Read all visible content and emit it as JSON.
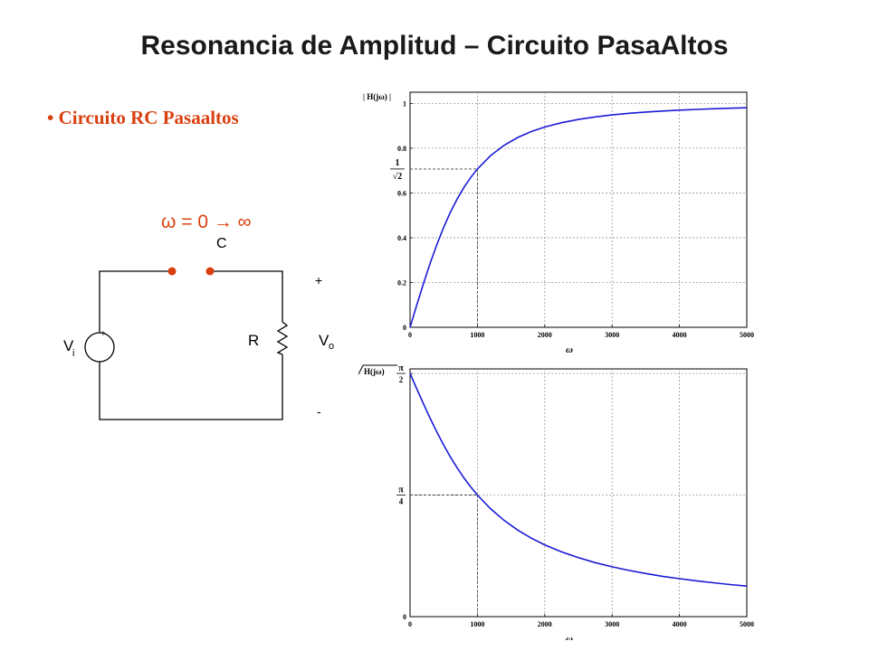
{
  "title": "Resonancia de Amplitud – Circuito PasaAltos",
  "bullet": "• Circuito RC Pasaaltos",
  "circuit": {
    "omega_annotation": "ω = 0 → ∞",
    "capacitor_label": "C",
    "resistor_label": "R",
    "vi_label": "V",
    "vi_sub": "i",
    "vo_label": "V",
    "vo_sub": "o",
    "plus_source": "+",
    "plus_output": "+",
    "minus_output": "-",
    "accent_color": "#d9400f"
  },
  "chart_data": [
    {
      "type": "line",
      "ylabel": "| H(jω) |",
      "xlabel": "ω",
      "xlim": [
        0,
        5000
      ],
      "ylim": [
        0,
        1.05
      ],
      "x_ticks": [
        0,
        1000,
        2000,
        3000,
        4000,
        5000
      ],
      "x_tick_labels": [
        "0",
        "1000",
        "2000",
        "3000",
        "4000",
        "5000"
      ],
      "y_ticks": [
        0,
        0.2,
        0.4,
        0.6,
        0.8,
        1
      ],
      "y_tick_labels": [
        "0",
        "0.2",
        "0.4",
        "0.6",
        "0.8",
        "1"
      ],
      "special_tick": {
        "value": 0.7071,
        "numerator": "1",
        "denominator": "√2",
        "x": 1000
      },
      "grid": true,
      "series": [
        {
          "x": [
            0,
            100,
            200,
            300,
            400,
            500,
            600,
            700,
            800,
            900,
            1000,
            1200,
            1400,
            1600,
            1800,
            2000,
            2250,
            2500,
            2750,
            3000,
            3250,
            3500,
            3750,
            4000,
            4250,
            4500,
            4750,
            5000
          ],
          "values": [
            0,
            0.0995,
            0.1961,
            0.2873,
            0.3714,
            0.4472,
            0.5145,
            0.5735,
            0.6247,
            0.669,
            0.7071,
            0.7682,
            0.8137,
            0.848,
            0.8742,
            0.8944,
            0.9138,
            0.9285,
            0.9398,
            0.9487,
            0.9558,
            0.9615,
            0.9662,
            0.9701,
            0.9734,
            0.9762,
            0.9785,
            0.9806
          ],
          "color": "#1a1ad6"
        }
      ]
    },
    {
      "type": "line",
      "ylabel": "H(jω)",
      "xlabel": "ω",
      "xlim": [
        0,
        5000
      ],
      "ylim": [
        0,
        1.6
      ],
      "x_ticks": [
        0,
        1000,
        2000,
        3000,
        4000,
        5000
      ],
      "x_tick_labels": [
        "0",
        "1000",
        "2000",
        "3000",
        "4000",
        "5000"
      ],
      "y_ticks": [
        0,
        0.7854,
        1.5708
      ],
      "y_tick_labels": [
        "0",
        "π/4",
        "π/2"
      ],
      "special_tick": {
        "value": 0.7854,
        "x": 1000
      },
      "grid": true,
      "series": [
        {
          "x": [
            0,
            100,
            200,
            300,
            400,
            500,
            600,
            700,
            800,
            900,
            1000,
            1200,
            1400,
            1600,
            1800,
            2000,
            2250,
            2500,
            2750,
            3000,
            3250,
            3500,
            3750,
            4000,
            4250,
            4500,
            4750,
            5000
          ],
          "values": [
            1.5708,
            1.4711,
            1.3734,
            1.2793,
            1.1903,
            1.1071,
            1.0304,
            0.9601,
            0.8961,
            0.838,
            0.7854,
            0.6947,
            0.6202,
            0.5586,
            0.5071,
            0.4636,
            0.4182,
            0.3805,
            0.3488,
            0.3218,
            0.2985,
            0.2783,
            0.2606,
            0.245,
            0.2311,
            0.2187,
            0.2075,
            0.1974
          ],
          "color": "#1a1ad6"
        }
      ]
    }
  ]
}
